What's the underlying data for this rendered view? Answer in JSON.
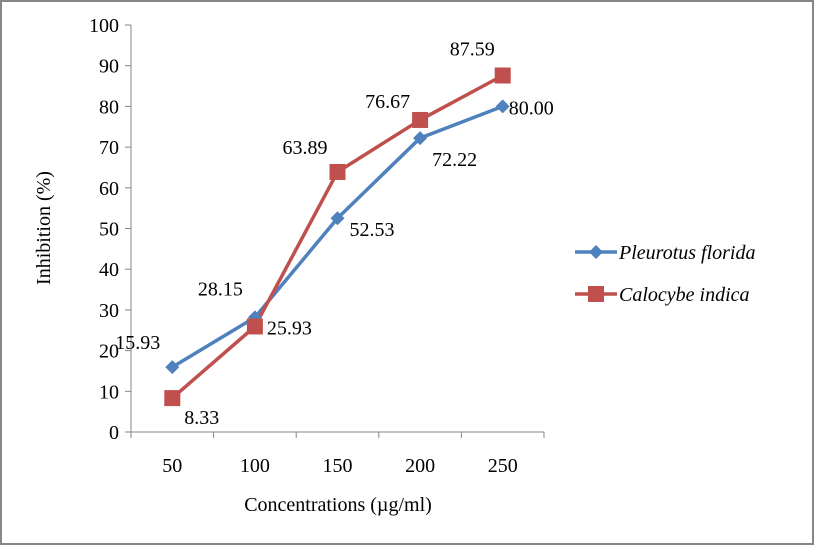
{
  "chart_data": {
    "type": "line",
    "title": "",
    "xlabel": "Concentrations (µg/ml)",
    "ylabel": "Inhibition (%)",
    "categories": [
      "50",
      "100",
      "150",
      "200",
      "250"
    ],
    "ylim": [
      0,
      100
    ],
    "yticks": [
      "0",
      "10",
      "20",
      "30",
      "40",
      "50",
      "60",
      "70",
      "80",
      "90",
      "100"
    ],
    "grid": false,
    "legend_position": "right",
    "series": [
      {
        "name": "Pleurotus florida",
        "color": "#4F81BD",
        "marker": "diamond",
        "values": [
          15.93,
          28.15,
          52.53,
          72.22,
          80.0
        ],
        "labels": [
          "15.93",
          "28.15",
          "52.53",
          "72.22",
          "80.00"
        ]
      },
      {
        "name": "Calocybe indica",
        "color": "#C0504D",
        "marker": "square",
        "values": [
          8.33,
          25.93,
          63.89,
          76.67,
          87.59
        ],
        "labels": [
          "8.33",
          "25.93",
          "63.89",
          "76.67",
          "87.59"
        ]
      }
    ]
  }
}
